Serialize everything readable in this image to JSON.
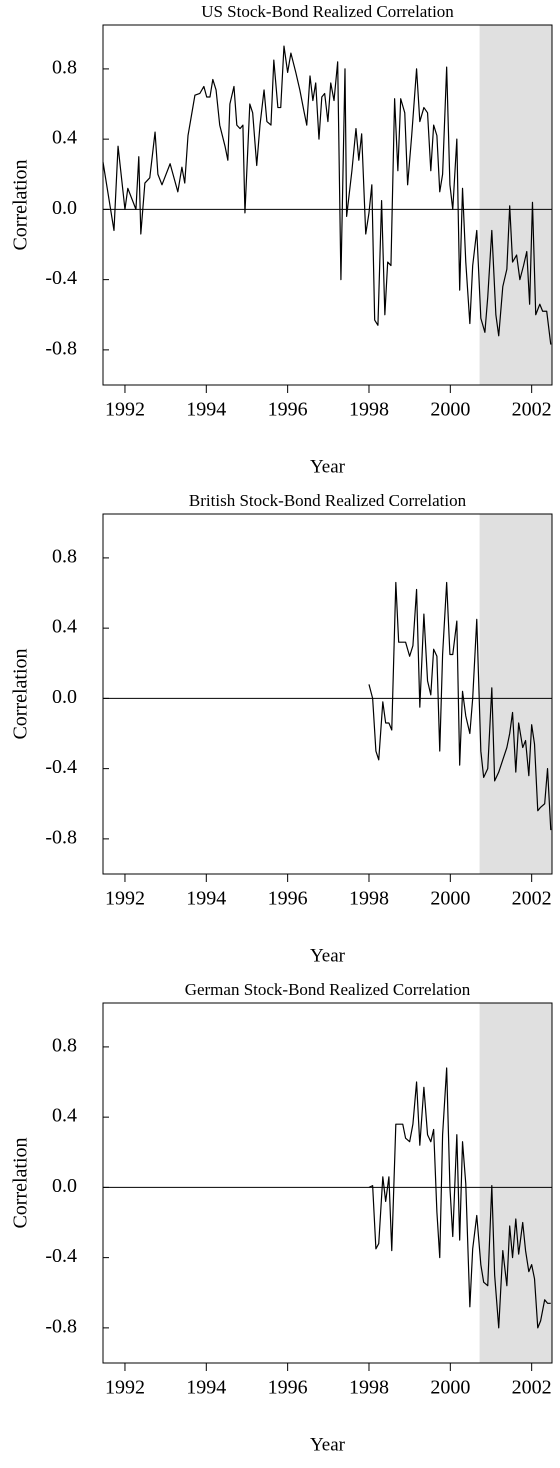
{
  "chart_data": [
    {
      "type": "line",
      "title": "US Stock-Bond Realized Correlation",
      "xlabel": "Year",
      "ylabel": "Correlation",
      "x": [
        1991.46,
        1991.73,
        1991.83,
        1992.0,
        1992.07,
        1992.27,
        1992.34,
        1992.39,
        1992.49,
        1992.61,
        1992.74,
        1992.81,
        1992.91,
        1993.11,
        1993.3,
        1993.4,
        1993.47,
        1993.55,
        1993.72,
        1993.84,
        1993.94,
        1994.01,
        1994.09,
        1994.16,
        1994.24,
        1994.33,
        1994.46,
        1994.53,
        1994.58,
        1994.68,
        1994.75,
        1994.83,
        1994.9,
        1994.95,
        1995.07,
        1995.14,
        1995.24,
        1995.32,
        1995.42,
        1995.49,
        1995.59,
        1995.66,
        1995.76,
        1995.83,
        1995.91,
        1996.0,
        1996.08,
        1996.2,
        1996.3,
        1996.4,
        1996.47,
        1996.55,
        1996.62,
        1996.69,
        1996.77,
        1996.84,
        1996.91,
        1996.99,
        1997.06,
        1997.14,
        1997.23,
        1997.31,
        1997.41,
        1997.45,
        1997.58,
        1997.68,
        1997.75,
        1997.82,
        1997.92,
        1998.0,
        1998.07,
        1998.14,
        1998.22,
        1998.31,
        1998.39,
        1998.46,
        1998.54,
        1998.63,
        1998.71,
        1998.78,
        1998.88,
        1998.95,
        1999.05,
        1999.17,
        1999.25,
        1999.35,
        1999.44,
        1999.52,
        1999.59,
        1999.67,
        1999.74,
        1999.81,
        1999.91,
        1999.99,
        2000.06,
        2000.16,
        2000.23,
        2000.3,
        2000.38,
        2000.48,
        2000.55,
        2000.65,
        2000.75,
        2000.85,
        2000.92,
        2001.02,
        2001.12,
        2001.19,
        2001.29,
        2001.39,
        2001.46,
        2001.53,
        2001.63,
        2001.71,
        2001.8,
        2001.88,
        2001.95,
        2002.02,
        2002.1,
        2002.2,
        2002.27,
        2002.37,
        2002.47
      ],
      "values": [
        0.27,
        -0.12,
        0.36,
        0.0,
        0.12,
        0.0,
        0.3,
        -0.14,
        0.15,
        0.18,
        0.44,
        0.2,
        0.14,
        0.26,
        0.1,
        0.24,
        0.15,
        0.42,
        0.65,
        0.66,
        0.7,
        0.64,
        0.64,
        0.74,
        0.68,
        0.48,
        0.36,
        0.28,
        0.6,
        0.7,
        0.48,
        0.46,
        0.48,
        -0.02,
        0.6,
        0.55,
        0.25,
        0.48,
        0.68,
        0.5,
        0.48,
        0.85,
        0.58,
        0.58,
        0.93,
        0.78,
        0.89,
        0.78,
        0.68,
        0.56,
        0.48,
        0.76,
        0.62,
        0.72,
        0.4,
        0.64,
        0.66,
        0.5,
        0.72,
        0.62,
        0.84,
        -0.4,
        0.8,
        -0.04,
        0.22,
        0.46,
        0.28,
        0.43,
        -0.14,
        -0.02,
        0.14,
        -0.63,
        -0.66,
        0.05,
        -0.6,
        -0.3,
        -0.32,
        0.63,
        0.22,
        0.63,
        0.55,
        0.14,
        0.42,
        0.8,
        0.5,
        0.58,
        0.55,
        0.22,
        0.48,
        0.42,
        0.1,
        0.2,
        0.81,
        0.14,
        0.0,
        0.4,
        -0.46,
        0.12,
        -0.3,
        -0.65,
        -0.32,
        -0.12,
        -0.62,
        -0.7,
        -0.5,
        -0.12,
        -0.6,
        -0.72,
        -0.44,
        -0.34,
        0.02,
        -0.3,
        -0.26,
        -0.4,
        -0.32,
        -0.24,
        -0.54,
        0.04,
        -0.6,
        -0.54,
        -0.58,
        -0.58,
        -0.77
      ],
      "color": "#000000",
      "xlim": [
        1991.46,
        2002.5
      ],
      "ylim": [
        -1.0,
        1.05
      ],
      "xticks": [
        1992,
        1994,
        1996,
        1998,
        2000,
        2002
      ],
      "yticks": [
        -0.8,
        -0.4,
        {
          "value": 0,
          "label": "0.0"
        },
        0.4,
        0.8
      ],
      "hline": 0,
      "shaded_region": [
        2000.72,
        2002.5
      ],
      "shade_color": "#e0e0e0"
    },
    {
      "type": "line",
      "title": "British Stock-Bond Realized Correlation",
      "xlabel": "Year",
      "ylabel": "Correlation",
      "x": [
        1998.0,
        1998.09,
        1998.17,
        1998.24,
        1998.34,
        1998.41,
        1998.49,
        1998.56,
        1998.66,
        1998.73,
        1998.83,
        1998.9,
        1999.0,
        1999.08,
        1999.17,
        1999.25,
        1999.35,
        1999.44,
        1999.52,
        1999.59,
        1999.67,
        1999.74,
        1999.81,
        1999.91,
        1999.99,
        2000.06,
        2000.16,
        2000.23,
        2000.3,
        2000.38,
        2000.48,
        2000.55,
        2000.65,
        2000.75,
        2000.82,
        2000.92,
        2001.02,
        2001.09,
        2001.19,
        2001.29,
        2001.39,
        2001.46,
        2001.53,
        2001.61,
        2001.68,
        2001.78,
        2001.85,
        2001.93,
        2002.0,
        2002.07,
        2002.15,
        2002.22,
        2002.32,
        2002.39,
        2002.47
      ],
      "values": [
        0.08,
        0.0,
        -0.3,
        -0.35,
        -0.02,
        -0.14,
        -0.14,
        -0.18,
        0.66,
        0.32,
        0.32,
        0.32,
        0.24,
        0.3,
        0.62,
        -0.05,
        0.48,
        0.1,
        0.02,
        0.28,
        0.24,
        -0.3,
        0.25,
        0.66,
        0.25,
        0.25,
        0.44,
        -0.38,
        0.04,
        -0.1,
        -0.2,
        0.0,
        0.45,
        -0.3,
        -0.45,
        -0.4,
        0.06,
        -0.47,
        -0.42,
        -0.35,
        -0.28,
        -0.2,
        -0.08,
        -0.42,
        -0.14,
        -0.28,
        -0.24,
        -0.44,
        -0.15,
        -0.26,
        -0.64,
        -0.62,
        -0.6,
        -0.4,
        -0.75
      ],
      "color": "#000000",
      "xlim": [
        1991.46,
        2002.5
      ],
      "ylim": [
        -1.0,
        1.05
      ],
      "xticks": [
        1992,
        1994,
        1996,
        1998,
        2000,
        2002
      ],
      "yticks": [
        -0.8,
        -0.4,
        {
          "value": 0,
          "label": "0.0"
        },
        0.4,
        0.8
      ],
      "hline": 0,
      "shaded_region": [
        2000.72,
        2002.5
      ],
      "shade_color": "#e0e0e0"
    },
    {
      "type": "line",
      "title": "German Stock-Bond Realized Correlation",
      "xlabel": "Year",
      "ylabel": "Correlation",
      "x": [
        1998.0,
        1998.09,
        1998.17,
        1998.24,
        1998.34,
        1998.41,
        1998.49,
        1998.56,
        1998.66,
        1998.73,
        1998.83,
        1998.9,
        1999.0,
        1999.08,
        1999.17,
        1999.25,
        1999.35,
        1999.44,
        1999.52,
        1999.59,
        1999.67,
        1999.74,
        1999.81,
        1999.91,
        1999.99,
        2000.06,
        2000.16,
        2000.23,
        2000.3,
        2000.38,
        2000.48,
        2000.55,
        2000.65,
        2000.75,
        2000.82,
        2000.92,
        2001.02,
        2001.09,
        2001.19,
        2001.29,
        2001.39,
        2001.46,
        2001.53,
        2001.61,
        2001.68,
        2001.78,
        2001.85,
        2001.93,
        2002.0,
        2002.07,
        2002.15,
        2002.22,
        2002.32,
        2002.39,
        2002.47
      ],
      "values": [
        0.0,
        0.01,
        -0.35,
        -0.32,
        0.06,
        -0.08,
        0.06,
        -0.36,
        0.36,
        0.36,
        0.36,
        0.28,
        0.26,
        0.36,
        0.6,
        0.24,
        0.57,
        0.3,
        0.26,
        0.33,
        -0.14,
        -0.4,
        0.3,
        0.68,
        0.0,
        -0.28,
        0.3,
        -0.3,
        0.26,
        0.02,
        -0.68,
        -0.35,
        -0.16,
        -0.44,
        -0.54,
        -0.56,
        0.01,
        -0.5,
        -0.8,
        -0.36,
        -0.56,
        -0.22,
        -0.4,
        -0.18,
        -0.38,
        -0.2,
        -0.36,
        -0.48,
        -0.44,
        -0.52,
        -0.8,
        -0.76,
        -0.64,
        -0.66,
        -0.66
      ],
      "color": "#000000",
      "xlim": [
        1991.46,
        2002.5
      ],
      "ylim": [
        -1.0,
        1.05
      ],
      "xticks": [
        1992,
        1994,
        1996,
        1998,
        2000,
        2002
      ],
      "yticks": [
        -0.8,
        -0.4,
        {
          "value": 0,
          "label": "0.0"
        },
        0.4,
        0.8
      ],
      "hline": 0,
      "shaded_region": [
        2000.72,
        2002.5
      ],
      "shade_color": "#e0e0e0"
    }
  ]
}
